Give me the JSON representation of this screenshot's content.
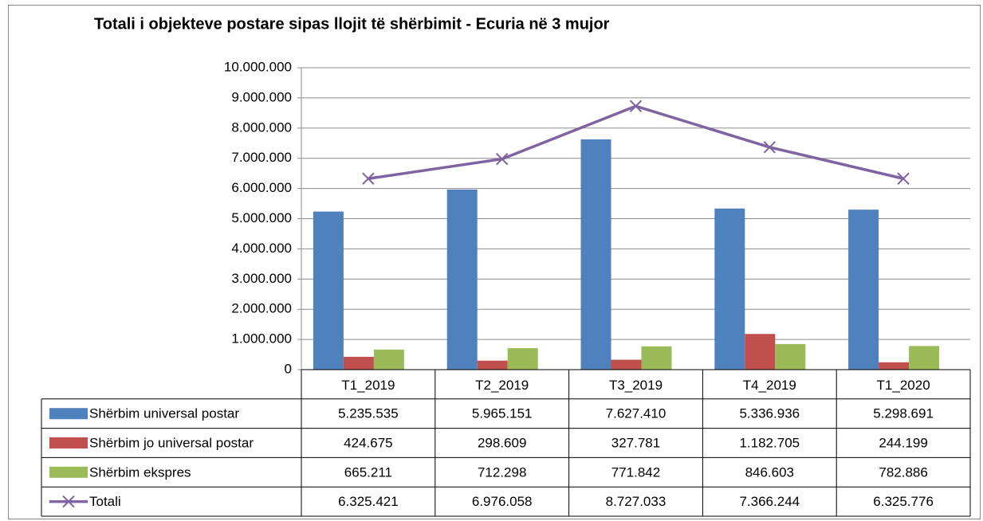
{
  "chart_data": {
    "type": "bar",
    "title": "Totali i objekteve postare sipas llojit të shërbimit - Ecuria në 3 mujor",
    "categories": [
      "T1_2019",
      "T2_2019",
      "T3_2019",
      "T4_2019",
      "T1_2020"
    ],
    "series": [
      {
        "name": "Shërbim universal postar",
        "color": "#4f81bd",
        "values": [
          5235535,
          5965151,
          7627410,
          5336936,
          5298691
        ],
        "value_labels": [
          "5.235.535",
          "5.965.151",
          "7.627.410",
          "5.336.936",
          "5.298.691"
        ]
      },
      {
        "name": "Shërbim jo universal postar",
        "color": "#c0504d",
        "values": [
          424675,
          298609,
          327781,
          1182705,
          244199
        ],
        "value_labels": [
          "424.675",
          "298.609",
          "327.781",
          "1.182.705",
          "244.199"
        ]
      },
      {
        "name": "Shërbim ekspres",
        "color": "#9bbb59",
        "values": [
          665211,
          712298,
          771842,
          846603,
          782886
        ],
        "value_labels": [
          "665.211",
          "712.298",
          "771.842",
          "846.603",
          "782.886"
        ]
      },
      {
        "name": "Totali",
        "type": "line",
        "color": "#8064a2",
        "values": [
          6325421,
          6976058,
          8727033,
          7366244,
          6325776
        ],
        "value_labels": [
          "6.325.421",
          "6.976.058",
          "8.727.033",
          "7.366.244",
          "6.325.776"
        ]
      }
    ],
    "ylim": [
      0,
      10000000
    ],
    "yticks": [
      0,
      {
        "value": 1000000,
        "label": "1.000.000"
      },
      {
        "value": 2000000,
        "label": "2.000.000"
      },
      {
        "value": 3000000,
        "label": "3.000.000"
      },
      {
        "value": 4000000,
        "label": "4.000.000"
      },
      {
        "value": 5000000,
        "label": "5.000.000"
      },
      {
        "value": 6000000,
        "label": "6.000.000"
      },
      {
        "value": 7000000,
        "label": "7.000.000"
      },
      {
        "value": 8000000,
        "label": "8.000.000"
      },
      {
        "value": 9000000,
        "label": "9.000.000"
      },
      {
        "value": 10000000,
        "label": "10.000.000"
      }
    ],
    "grid": true
  }
}
